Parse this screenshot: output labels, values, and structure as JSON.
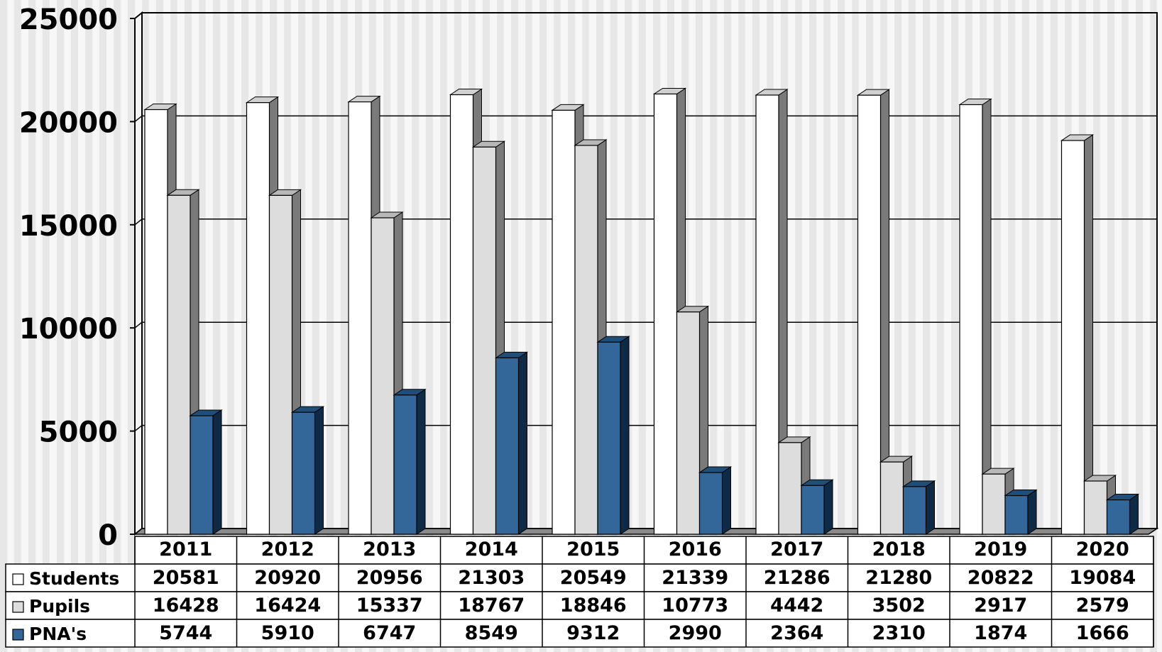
{
  "chart_data": {
    "type": "bar",
    "categories": [
      "2011",
      "2012",
      "2013",
      "2014",
      "2015",
      "2016",
      "2017",
      "2018",
      "2019",
      "2020"
    ],
    "series": [
      {
        "name": "Students",
        "color": "#ffffff",
        "values": [
          20581,
          20920,
          20956,
          21303,
          20549,
          21339,
          21286,
          21280,
          20822,
          19084
        ]
      },
      {
        "name": "Pupils",
        "color": "#dddddd",
        "values": [
          16428,
          16424,
          15337,
          18767,
          18846,
          10773,
          4442,
          3502,
          2917,
          2579
        ]
      },
      {
        "name": "PNA's",
        "color": "#336699",
        "values": [
          5744,
          5910,
          6747,
          8549,
          9312,
          2990,
          2364,
          2310,
          1874,
          1666
        ]
      }
    ],
    "y_ticks": [
      "25000",
      "20000",
      "15000",
      "10000",
      "5000",
      "0"
    ],
    "ylim": [
      0,
      25000
    ],
    "grid": true,
    "legend": "data-table",
    "data_table": true
  }
}
